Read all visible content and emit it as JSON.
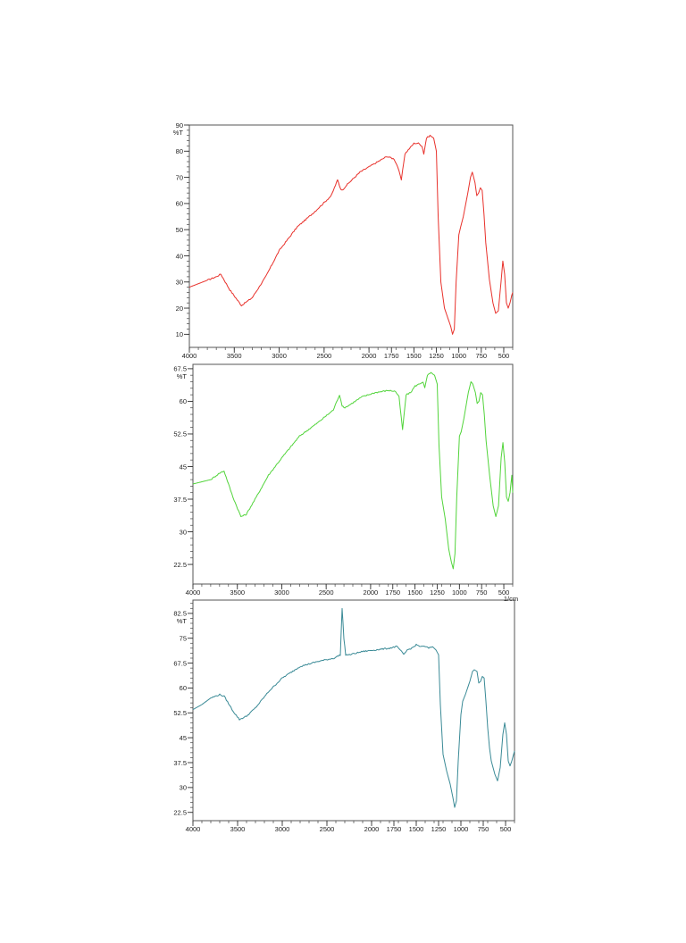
{
  "chart_data": [
    {
      "type": "line",
      "title": "",
      "xlabel": "",
      "ylabel": "%T",
      "unit_label": "",
      "xlim": [
        4000,
        400
      ],
      "ylim": [
        5,
        90
      ],
      "x_ticks": [
        4000,
        3500,
        3000,
        2500,
        2000,
        1750,
        1500,
        1250,
        1000,
        750,
        500
      ],
      "x_tick_labels": [
        "4000",
        "3500",
        "3000",
        "2500",
        "2000",
        "1750",
        "1500",
        "1250",
        "1000",
        "750",
        "500"
      ],
      "y_ticks": [
        10,
        20,
        30,
        40,
        50,
        60,
        70,
        80,
        90
      ],
      "y_tick_labels": [
        "10",
        "20",
        "30",
        "40",
        "50",
        "60",
        "70",
        "80",
        "90"
      ],
      "grid": false,
      "series": [
        {
          "color": "#e8312b",
          "x": [
            4000,
            3850,
            3700,
            3650,
            3550,
            3420,
            3300,
            3150,
            3000,
            2800,
            2600,
            2420,
            2350,
            2320,
            2300,
            2250,
            2100,
            1950,
            1800,
            1720,
            1680,
            1640,
            1600,
            1550,
            1500,
            1450,
            1410,
            1390,
            1360,
            1320,
            1280,
            1250,
            1230,
            1200,
            1160,
            1120,
            1090,
            1070,
            1050,
            1030,
            1000,
            980,
            950,
            900,
            870,
            850,
            820,
            800,
            780,
            760,
            740,
            720,
            700,
            680,
            660,
            620,
            590,
            560,
            530,
            510,
            490,
            470,
            450,
            430,
            410,
            400
          ],
          "y": [
            28,
            30,
            32,
            33,
            27,
            21,
            24,
            32,
            42,
            51,
            57,
            63,
            69,
            66,
            65,
            67,
            72,
            75,
            78,
            77,
            74,
            69,
            79,
            81,
            83,
            83,
            82,
            79,
            85,
            86,
            85,
            80,
            55,
            30,
            20,
            16,
            13,
            10,
            12,
            30,
            48,
            51,
            55,
            64,
            70,
            72,
            68,
            63,
            64,
            66,
            65,
            56,
            45,
            38,
            31,
            22,
            18,
            19,
            30,
            38,
            33,
            22,
            20,
            22,
            25,
            26
          ]
        }
      ]
    },
    {
      "type": "line",
      "title": "",
      "xlabel": "",
      "ylabel": "%T",
      "unit_label": "1/cm",
      "xlim": [
        4000,
        400
      ],
      "ylim": [
        18,
        68.5
      ],
      "x_ticks": [
        4000,
        3500,
        3000,
        2500,
        2000,
        1750,
        1500,
        1250,
        1000,
        750,
        500
      ],
      "x_tick_labels": [
        "4000",
        "3500",
        "3000",
        "2500",
        "2000",
        "1750",
        "1500",
        "1250",
        "1000",
        "750",
        "500"
      ],
      "y_ticks": [
        22.5,
        30,
        37.5,
        45,
        52.5,
        60,
        67.5
      ],
      "y_tick_labels": [
        "22.5",
        "30",
        "37.5",
        "45",
        "52.5",
        "60",
        "67.5"
      ],
      "grid": false,
      "series": [
        {
          "color": "#52d43b",
          "x": [
            4000,
            3900,
            3800,
            3700,
            3650,
            3550,
            3460,
            3400,
            3300,
            3150,
            3000,
            2800,
            2600,
            2420,
            2350,
            2320,
            2300,
            2250,
            2100,
            1950,
            1800,
            1720,
            1680,
            1640,
            1600,
            1550,
            1500,
            1450,
            1410,
            1390,
            1360,
            1320,
            1280,
            1250,
            1230,
            1200,
            1160,
            1120,
            1090,
            1070,
            1050,
            1030,
            1000,
            980,
            950,
            900,
            870,
            850,
            820,
            800,
            780,
            760,
            740,
            720,
            700,
            680,
            660,
            620,
            590,
            560,
            530,
            510,
            490,
            470,
            450,
            430,
            410,
            400
          ],
          "y": [
            41,
            41.5,
            42,
            43.5,
            44,
            38,
            33.5,
            34,
            37.5,
            43,
            47,
            52,
            55,
            58,
            61.5,
            59,
            58.5,
            59,
            61,
            62,
            62.5,
            62.3,
            61,
            53.5,
            61.5,
            62,
            63.5,
            64,
            64.5,
            63,
            66,
            66.5,
            66,
            64,
            50,
            38,
            33,
            26,
            23,
            21.5,
            25,
            38,
            52,
            53,
            56,
            62,
            64.5,
            64,
            62,
            59.5,
            60,
            62,
            61.5,
            57,
            51,
            47,
            43,
            36,
            33.5,
            36,
            47,
            50.5,
            46,
            38,
            37,
            39,
            43,
            39
          ]
        }
      ]
    },
    {
      "type": "line",
      "title": "",
      "xlabel": "",
      "ylabel": "%T",
      "unit_label": "",
      "xlim": [
        4000,
        400
      ],
      "ylim": [
        20,
        86.5
      ],
      "x_ticks": [
        4000,
        3500,
        3000,
        2500,
        2000,
        1750,
        1500,
        1250,
        1000,
        750,
        500
      ],
      "x_tick_labels": [
        "4000",
        "3500",
        "3000",
        "2500",
        "2000",
        "1750",
        "1500",
        "1250",
        "1000",
        "750",
        "500"
      ],
      "y_ticks": [
        22.5,
        30,
        37.5,
        45,
        52.5,
        60,
        67.5,
        75,
        82.5
      ],
      "y_tick_labels": [
        "22.5",
        "30",
        "37.5",
        "45",
        "52.5",
        "60",
        "67.5",
        "75",
        "82.5"
      ],
      "grid": false,
      "series": [
        {
          "color": "#3a8a96",
          "x": [
            4000,
            3900,
            3800,
            3700,
            3650,
            3550,
            3480,
            3400,
            3300,
            3150,
            3000,
            2800,
            2600,
            2420,
            2350,
            2330,
            2310,
            2290,
            2250,
            2100,
            1950,
            1800,
            1720,
            1680,
            1640,
            1600,
            1550,
            1500,
            1450,
            1400,
            1360,
            1320,
            1280,
            1250,
            1230,
            1200,
            1160,
            1120,
            1090,
            1070,
            1050,
            1030,
            1000,
            980,
            950,
            900,
            870,
            850,
            820,
            800,
            780,
            760,
            740,
            720,
            700,
            680,
            660,
            620,
            590,
            560,
            530,
            510,
            490,
            470,
            450,
            430,
            410,
            400
          ],
          "y": [
            53.5,
            55,
            57,
            58,
            57.5,
            53,
            50.5,
            51.5,
            54,
            59,
            63,
            66.5,
            68,
            69,
            70,
            84,
            75,
            70,
            70,
            71,
            71.5,
            72,
            72.5,
            71.5,
            70,
            71.5,
            72,
            73,
            72.5,
            72.5,
            72,
            72.5,
            71.5,
            70,
            55,
            40,
            35,
            31,
            27,
            24,
            26,
            38,
            52,
            56,
            58,
            62,
            65,
            65.5,
            65,
            61.5,
            62,
            63.5,
            63,
            56,
            48,
            42,
            38,
            34,
            32,
            36,
            46,
            49.5,
            46,
            38,
            36.5,
            38,
            40,
            41
          ]
        }
      ]
    }
  ]
}
